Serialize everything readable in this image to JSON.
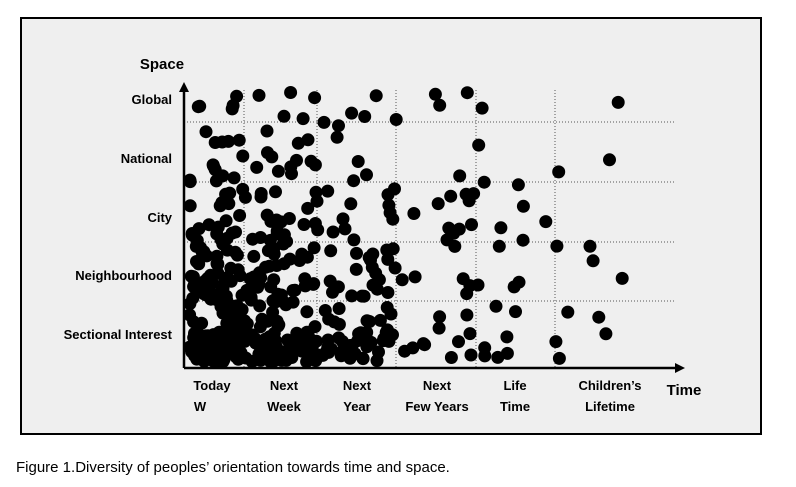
{
  "caption": {
    "figure": "Figure 1.",
    "text": "Diversity of peoples’ orientation towards time and space."
  },
  "chart_data": {
    "type": "scatter",
    "title": "",
    "xlabel": "Time",
    "ylabel": "Space",
    "x_categories": [
      {
        "line1": "Today",
        "line2": "W"
      },
      {
        "line1": "Next",
        "line2": "Week"
      },
      {
        "line1": "Next",
        "line2": "Year"
      },
      {
        "line1": "Next",
        "line2": "Few Years"
      },
      {
        "line1": "Life",
        "line2": "Time"
      },
      {
        "line1": "Children’s",
        "line2": "Lifetime"
      }
    ],
    "y_categories": [
      "Sectional Interest",
      "Neighbourhood",
      "City",
      "National",
      "Global"
    ],
    "grid": "dotted",
    "dot_color": "#000000",
    "faint_label_color": "#c9d8c2"
  }
}
